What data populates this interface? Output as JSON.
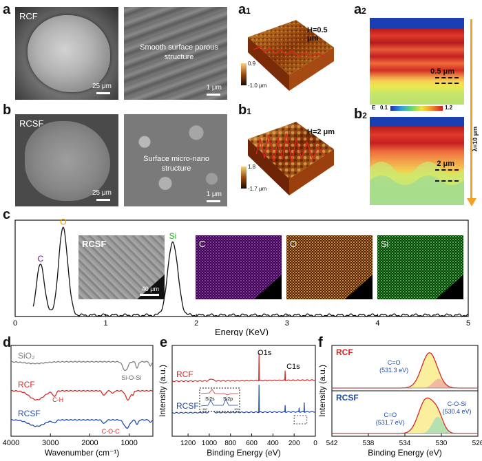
{
  "panel_a": {
    "letter": "a",
    "tag": "RCF",
    "scale_left": "25 μm",
    "scale_right": "1 μm",
    "caption": "Smooth surface porous structure"
  },
  "panel_b": {
    "letter": "b",
    "tag": "RCSF",
    "scale_left": "25 μm",
    "scale_right": "1 μm",
    "caption": "Surface micro-nano structure"
  },
  "panel_a1": {
    "letter": "a",
    "sub": "1",
    "height_label": "H=0.5 μm",
    "cbar_max": "0.9",
    "cbar_min": "-1.0 μm"
  },
  "panel_b1": {
    "letter": "b",
    "sub": "1",
    "height_label": "H=2  μm",
    "cbar_max": "1.8",
    "cbar_min": "-1.7 μm"
  },
  "panel_a2": {
    "letter": "a",
    "sub": "2",
    "depth_label": "0.5 μm",
    "cbar_label": "E",
    "cbar_min": "0.1",
    "cbar_max": "1.2"
  },
  "panel_b2": {
    "letter": "b",
    "sub": "2",
    "depth_label": "2 μm",
    "lambda_label": "λ=10 μm"
  },
  "panel_c": {
    "letter": "c",
    "map_titles": [
      "RCSF",
      "C",
      "O",
      "Si"
    ],
    "map_scale": "40 μm",
    "chart_data": {
      "type": "line",
      "xlabel": "Energy  (KeV)",
      "xlim": [
        0,
        5
      ],
      "ylim": [
        0,
        1.1
      ],
      "xticks": [
        "0",
        "1",
        "2",
        "3",
        "4",
        "5"
      ],
      "peaks": [
        {
          "name": "C",
          "x": 0.28,
          "h": 0.58,
          "w": 0.045,
          "color": "#6a1b9a"
        },
        {
          "name": "O",
          "x": 0.53,
          "h": 1.0,
          "w": 0.05,
          "color": "#e69500"
        },
        {
          "name": "Si",
          "x": 1.74,
          "h": 0.84,
          "w": 0.055,
          "color": "#1faa1f"
        }
      ]
    }
  },
  "panel_d": {
    "letter": "d",
    "chart_data": {
      "type": "line",
      "xlabel": "Wavenumber  (cm⁻¹)",
      "xlim": [
        4000,
        400
      ],
      "xticks": [
        "4000",
        "3000",
        "2000",
        "1000"
      ],
      "series": [
        {
          "name": "SiO₂",
          "color": "#808080",
          "offset": 0.82
        },
        {
          "name": "RCF",
          "color": "#d62828",
          "offset": 0.5
        },
        {
          "name": "RCSF",
          "color": "#1f4aa8",
          "offset": 0.18
        }
      ],
      "annotations": [
        "Si-O-Si",
        "C-H",
        "C-O-C"
      ]
    }
  },
  "panel_e": {
    "letter": "e",
    "chart_data": {
      "type": "line",
      "xlabel": "Binding Energy   (eV)",
      "ylabel": "Intensity (a.u.)",
      "xlim": [
        1350,
        0
      ],
      "xticks": [
        "1200",
        "1000",
        "800",
        "600",
        "400",
        "200",
        "0"
      ],
      "series": [
        {
          "name": "RCF",
          "color": "#d62828"
        },
        {
          "name": "RCSF",
          "color": "#1f4aa8"
        }
      ],
      "peak_labels": [
        "O1s",
        "C1s"
      ],
      "inset_labels": [
        "Si2s",
        "Si2p"
      ],
      "inset_ticks": [
        "160",
        "100"
      ]
    }
  },
  "panel_f": {
    "letter": "f",
    "chart_data": {
      "type": "area",
      "xlabel": "Binding Energy  (eV)",
      "ylabel": "Intensity (a.u.)",
      "xlim": [
        542,
        526
      ],
      "xticks": [
        "542",
        "538",
        "534",
        "530",
        "526"
      ],
      "subplots": [
        {
          "name": "RCF",
          "label": "C=O",
          "value": "(531.3 eV)"
        },
        {
          "name": "RCSF",
          "label": "C=O",
          "value": "(531.7 eV)",
          "label2": "C-O-Si",
          "value2": "(530.4 eV)"
        }
      ]
    }
  }
}
